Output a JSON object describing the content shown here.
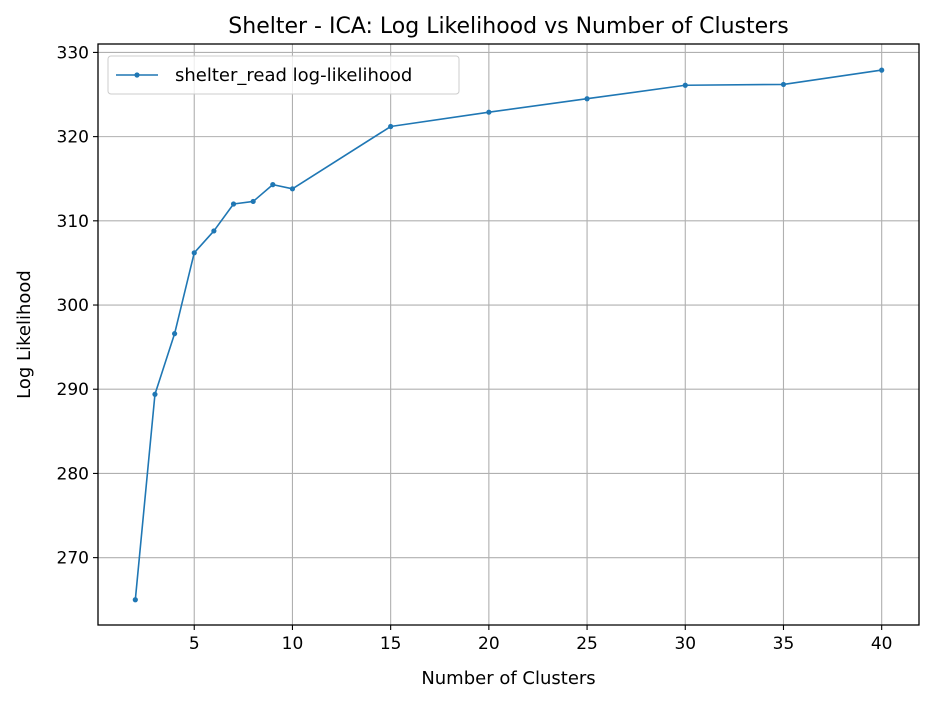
{
  "chart_data": {
    "type": "line",
    "title": "Shelter - ICA: Log Likelihood vs Number of Clusters",
    "xlabel": "Number of Clusters",
    "ylabel": "Log Likelihood",
    "xlim": [
      0.1,
      41.9
    ],
    "ylim": [
      262.0,
      331.0
    ],
    "xticks": [
      5,
      10,
      15,
      20,
      25,
      30,
      35,
      40
    ],
    "yticks": [
      270,
      280,
      290,
      300,
      310,
      320,
      330
    ],
    "grid": true,
    "legend_position": "top-left",
    "x": [
      2,
      3,
      4,
      5,
      6,
      7,
      8,
      9,
      10,
      15,
      20,
      25,
      30,
      35,
      40
    ],
    "series": [
      {
        "name": "shelter_read log-likelihood",
        "color": "#1f77b4",
        "marker": "circle",
        "values": [
          265.0,
          289.4,
          296.6,
          306.2,
          308.8,
          312.0,
          312.3,
          314.3,
          313.8,
          321.2,
          322.9,
          324.5,
          326.1,
          326.2,
          327.9
        ]
      }
    ]
  }
}
